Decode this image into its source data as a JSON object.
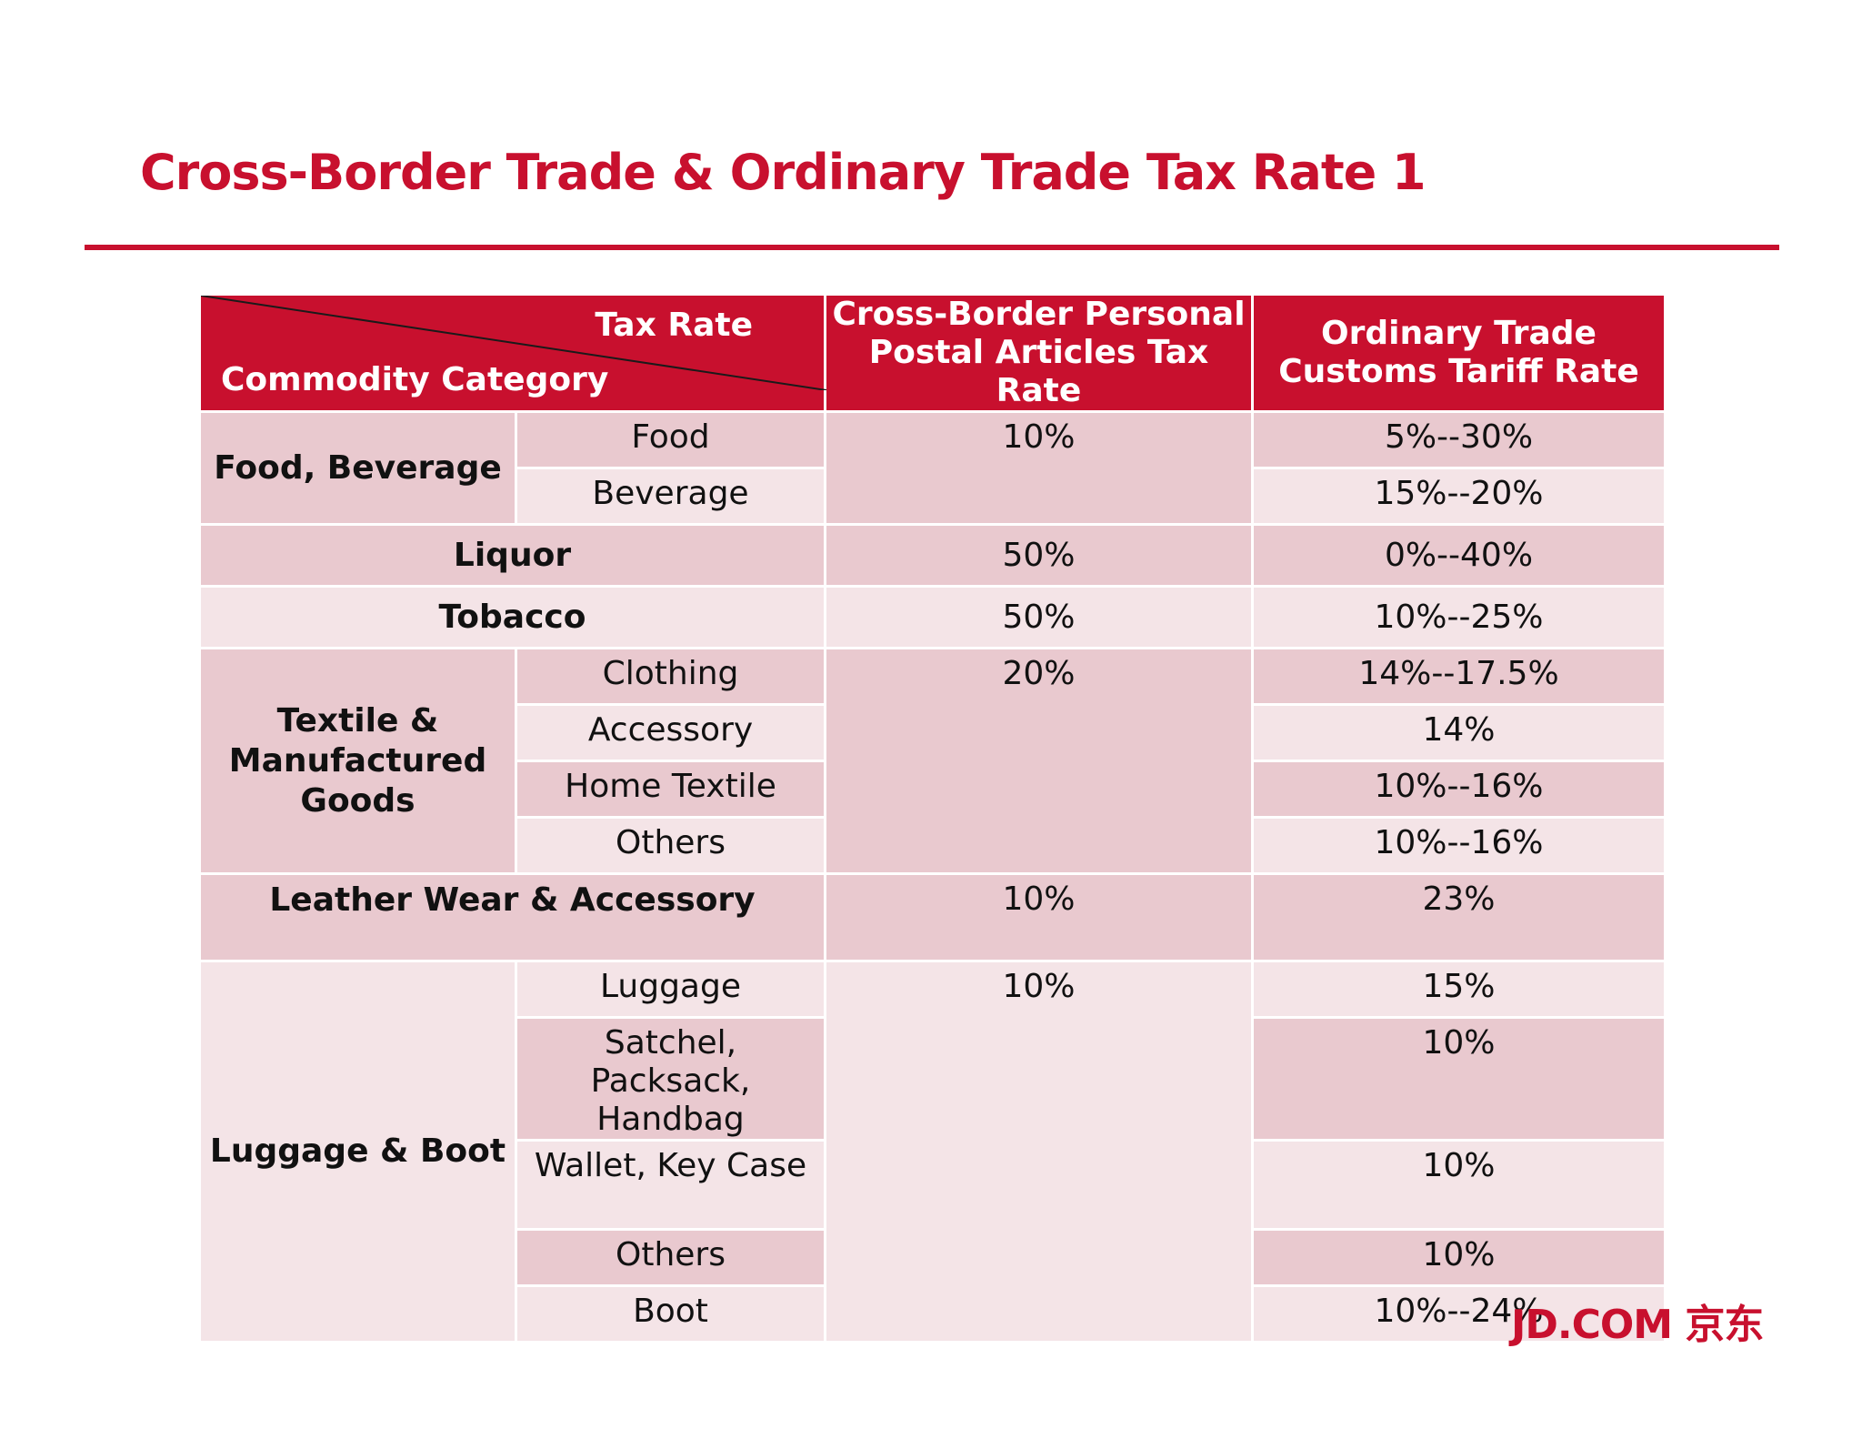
{
  "title": "Cross-Border Trade & Ordinary Trade Tax Rate 1",
  "table": {
    "header": {
      "corner_top": "Tax Rate",
      "corner_bottom": "Commodity Category",
      "col2_line1": "Cross-Border Personal",
      "col2_line2": "Postal Articles Tax Rate",
      "col3_line1": "Ordinary Trade",
      "col3_line2": "Customs Tariff Rate"
    },
    "food": {
      "category": "Food, Beverage",
      "rate": "10%",
      "sub": [
        {
          "name": "Food",
          "tariff": "5%--30%"
        },
        {
          "name": "Beverage",
          "tariff": "15%--20%"
        }
      ]
    },
    "liquor": {
      "category": "Liquor",
      "rate": "50%",
      "tariff": "0%--40%"
    },
    "tobacco": {
      "category": "Tobacco",
      "rate": "50%",
      "tariff": "10%--25%"
    },
    "textile": {
      "category_line1": "Textile &",
      "category_line2": "Manufactured",
      "category_line3": "Goods",
      "rate": "20%",
      "sub": [
        {
          "name": "Clothing",
          "tariff": "14%--17.5%"
        },
        {
          "name": "Accessory",
          "tariff": "14%"
        },
        {
          "name": "Home Textile",
          "tariff": "10%--16%"
        },
        {
          "name": "Others",
          "tariff": "10%--16%"
        }
      ]
    },
    "leather": {
      "category": "Leather Wear & Accessory",
      "rate": "10%",
      "tariff": "23%"
    },
    "luggage": {
      "category": "Luggage & Boot",
      "rate": "10%",
      "sub": [
        {
          "name": "Luggage",
          "tariff": "15%"
        },
        {
          "name_line1": "Satchel, Packsack,",
          "name_line2": "Handbag",
          "tariff": "10%"
        },
        {
          "name": "Wallet, Key Case",
          "tariff": "10%"
        },
        {
          "name": "Others",
          "tariff": "10%"
        },
        {
          "name": "Boot",
          "tariff": "10%--24%"
        }
      ]
    }
  },
  "logo": "JD.COM 京东",
  "colors": {
    "brand_red": "#c8102e",
    "row_dark": "#e9c9cf",
    "row_light": "#f4e4e7"
  }
}
